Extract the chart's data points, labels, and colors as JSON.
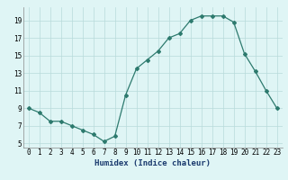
{
  "x": [
    0,
    1,
    2,
    3,
    4,
    5,
    6,
    7,
    8,
    9,
    10,
    11,
    12,
    13,
    14,
    15,
    16,
    17,
    18,
    19,
    20,
    21,
    22,
    23
  ],
  "y": [
    9.0,
    8.5,
    7.5,
    7.5,
    7.0,
    6.5,
    6.0,
    5.2,
    5.8,
    10.5,
    13.5,
    14.5,
    15.5,
    17.0,
    17.5,
    19.0,
    19.5,
    19.5,
    19.5,
    18.8,
    15.2,
    13.2,
    11.0,
    9.0
  ],
  "line_color": "#2d7a6e",
  "marker": "D",
  "marker_size": 2.0,
  "bg_color": "#dff5f5",
  "grid_color": "#b8dada",
  "xlabel": "Humidex (Indice chaleur)",
  "xlim": [
    -0.5,
    23.5
  ],
  "ylim": [
    4.5,
    20.5
  ],
  "yticks": [
    5,
    7,
    9,
    11,
    13,
    15,
    17,
    19
  ],
  "xticks": [
    0,
    1,
    2,
    3,
    4,
    5,
    6,
    7,
    8,
    9,
    10,
    11,
    12,
    13,
    14,
    15,
    16,
    17,
    18,
    19,
    20,
    21,
    22,
    23
  ],
  "tick_fontsize": 5.5,
  "xlabel_fontsize": 6.5,
  "xlabel_color": "#1a3a6e"
}
